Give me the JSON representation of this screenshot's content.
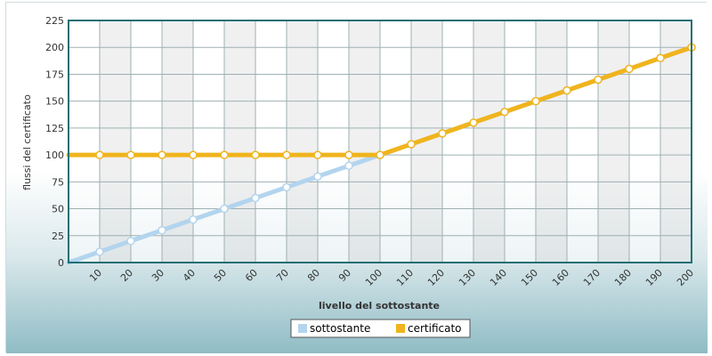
{
  "chart_data": {
    "type": "line",
    "title": "",
    "xlabel": "livello del sottostante",
    "ylabel": "flussi del certificato",
    "x": [
      0,
      10,
      20,
      30,
      40,
      50,
      60,
      70,
      80,
      90,
      100,
      110,
      120,
      130,
      140,
      150,
      160,
      170,
      180,
      190,
      200
    ],
    "x_ticks": [
      "10",
      "20",
      "30",
      "40",
      "50",
      "60",
      "70",
      "80",
      "90",
      "100",
      "110",
      "120",
      "130",
      "140",
      "150",
      "160",
      "170",
      "180",
      "190",
      "200"
    ],
    "y_ticks": [
      "0",
      "25",
      "50",
      "75",
      "100",
      "125",
      "150",
      "175",
      "200",
      "225"
    ],
    "xlim": [
      0,
      200
    ],
    "ylim": [
      0,
      225
    ],
    "grid": true,
    "legend_position": "bottom-center",
    "series": [
      {
        "name": "sottostante",
        "color": "#b3d4ee",
        "x": [
          0,
          10,
          20,
          30,
          40,
          50,
          60,
          70,
          80,
          90,
          100,
          110,
          120,
          130,
          140,
          150,
          160,
          170,
          180,
          190,
          200
        ],
        "values": [
          0,
          10,
          20,
          30,
          40,
          50,
          60,
          70,
          80,
          90,
          100,
          110,
          120,
          130,
          140,
          150,
          160,
          170,
          180,
          190,
          200
        ]
      },
      {
        "name": "certificato",
        "color": "#f0b41c",
        "x": [
          0,
          10,
          20,
          30,
          40,
          50,
          60,
          70,
          80,
          90,
          100,
          110,
          120,
          130,
          140,
          150,
          160,
          170,
          180,
          190,
          200
        ],
        "values": [
          100,
          100,
          100,
          100,
          100,
          100,
          100,
          100,
          100,
          100,
          100,
          110,
          120,
          130,
          140,
          150,
          160,
          170,
          180,
          190,
          200
        ]
      }
    ]
  }
}
